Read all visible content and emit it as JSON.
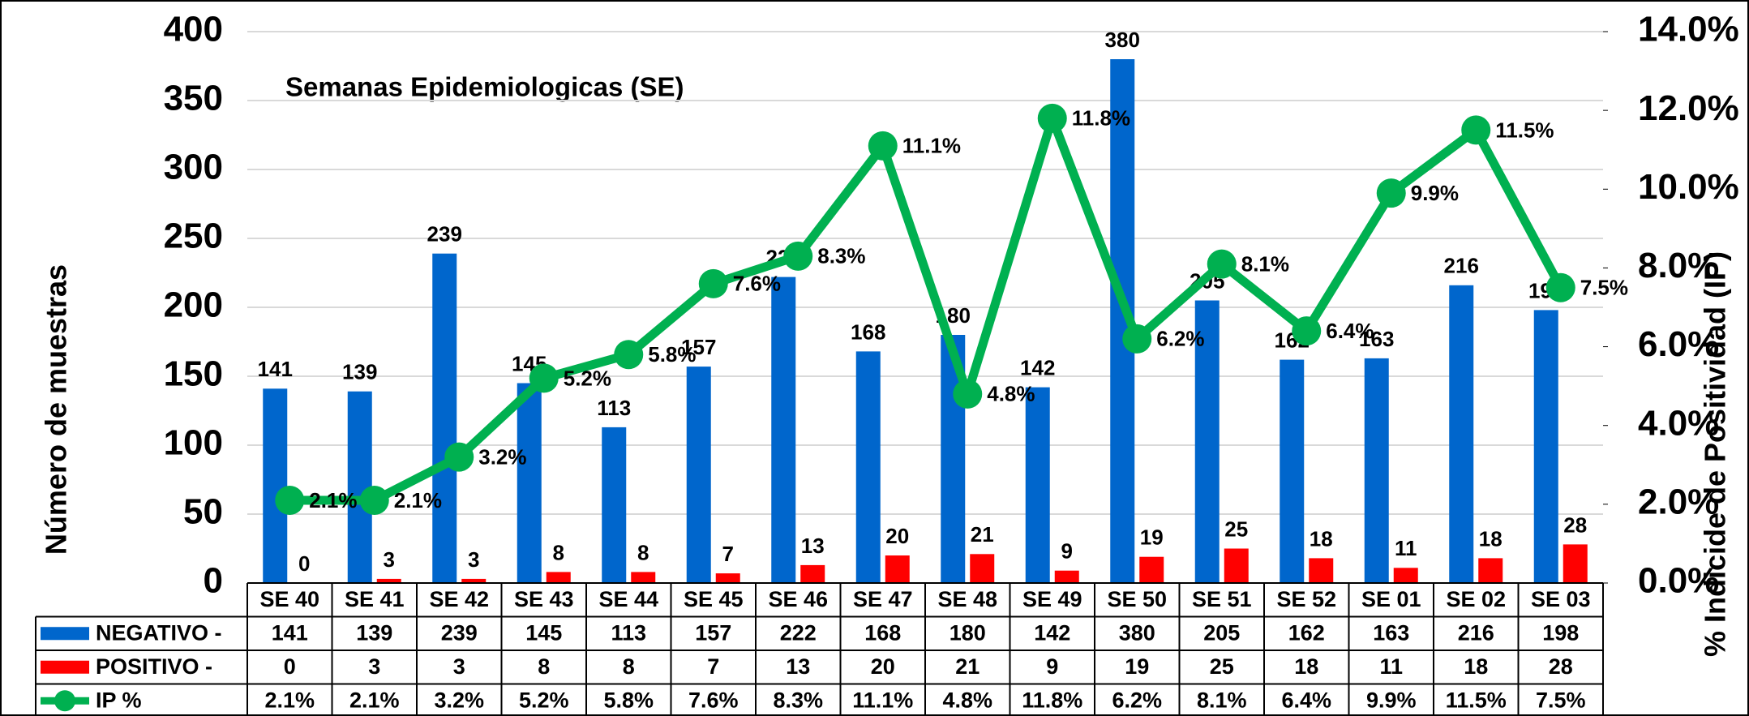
{
  "chart_data": {
    "type": "bar_line",
    "title": "Semanas Epidemiologicas (SE)",
    "y_label": "Número de muestras",
    "y2_label": "% Indicide de Positividad (IP)",
    "categories": [
      "SE 40",
      "SE 41",
      "SE 42",
      "SE 43",
      "SE 44",
      "SE 45",
      "SE 46",
      "SE 47",
      "SE 48",
      "SE 49",
      "SE 50",
      "SE 51",
      "SE 52",
      "SE 01",
      "SE 02",
      "SE 03"
    ],
    "series": [
      {
        "name": "NEGATIVO -",
        "type": "bar",
        "color": "#0066cc",
        "values": [
          141,
          139,
          239,
          145,
          113,
          157,
          222,
          168,
          180,
          142,
          380,
          205,
          162,
          163,
          216,
          198
        ]
      },
      {
        "name": "POSITIVO -",
        "type": "bar",
        "color": "#ff0000",
        "values": [
          0,
          3,
          3,
          8,
          8,
          7,
          13,
          20,
          21,
          9,
          19,
          25,
          18,
          11,
          18,
          28
        ]
      },
      {
        "name": "IP %",
        "type": "line",
        "axis": "y2",
        "color": "#00b050",
        "values": [
          2.1,
          2.1,
          3.2,
          5.2,
          5.8,
          7.6,
          8.3,
          11.1,
          4.8,
          11.8,
          6.2,
          8.1,
          6.4,
          9.9,
          11.5,
          7.5
        ],
        "value_labels": [
          "2.1%",
          "2.1%",
          "3.2%",
          "5.2%",
          "5.8%",
          "7.6%",
          "8.3%",
          "11.1%",
          "4.8%",
          "11.8%",
          "6.2%",
          "8.1%",
          "6.4%",
          "9.9%",
          "11.5%",
          "7.5%"
        ]
      }
    ],
    "ylim": [
      0,
      400
    ],
    "yticks": [
      0,
      50,
      100,
      150,
      200,
      250,
      300,
      350,
      400
    ],
    "y2lim": [
      0,
      14
    ],
    "y2ticks": [
      {
        "value": 0,
        "label": "0.0%"
      },
      {
        "value": 2,
        "label": "2.0%"
      },
      {
        "value": 4,
        "label": "4.0%"
      },
      {
        "value": 6,
        "label": "6.0%"
      },
      {
        "value": 8,
        "label": "8.0%"
      },
      {
        "value": 10,
        "label": "10.0%"
      },
      {
        "value": 12,
        "label": "12.0%"
      },
      {
        "value": 14,
        "label": "14.0%"
      }
    ],
    "grid": true
  }
}
